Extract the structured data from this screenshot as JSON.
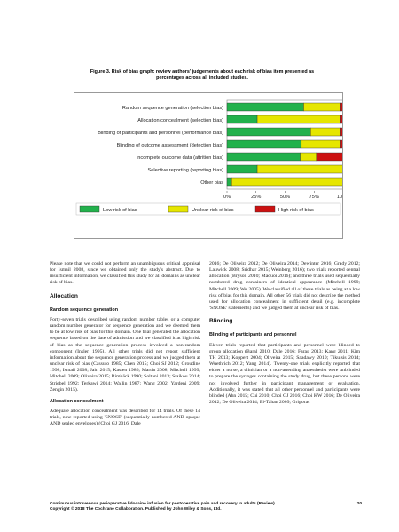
{
  "figure": {
    "caption_line1": "Figure 3.   Risk of bias graph: review authors' judgements about each risk of bias item presented as",
    "caption_line2": "percentages across all included studies."
  },
  "chart_data": {
    "type": "bar",
    "orientation": "horizontal",
    "stacked": true,
    "categories": [
      "Random sequence generation (selection bias)",
      "Allocation concealment (selection bias)",
      "Blinding of participants and personnel (performance bias)",
      "Blinding of outcome assessment (detection bias)",
      "Incomplete outcome data (attrition bias)",
      "Selective reporting (reporting bias)",
      "Other bias"
    ],
    "series": [
      {
        "name": "Low risk of bias",
        "color": "#22b14c",
        "values": [
          66,
          26,
          72,
          64,
          63,
          26,
          4
        ]
      },
      {
        "name": "Unclear risk of bias",
        "color": "#e6e600",
        "values": [
          32,
          72,
          26,
          34,
          14,
          74,
          96
        ]
      },
      {
        "name": "High risk of bias",
        "color": "#cc1111",
        "values": [
          2,
          2,
          2,
          2,
          23,
          0,
          0
        ]
      }
    ],
    "xticks": [
      "0%",
      "25%",
      "50%",
      "75%",
      "100%"
    ],
    "xlim": [
      0,
      100
    ],
    "legend": "bottom"
  },
  "left_col": {
    "p1": "Please note that we could not perform an unambiguous critical appraisal for Ismail 2008, since we obtained only the study's abstract. Due to insufficient information, we classified this study for all domains as unclear risk of bias.",
    "h_allocation": "Allocation",
    "h_random": "Random sequence generation",
    "p2": "Forty-seven trials described using random number tables or a computer random number generator for sequence generation and we deemed them to be at low risk of bias for this domain. One trial generated the allocation sequence based on the date of admission and we classified it at high risk of bias as the sequence generation process involved a non-random component (Insler 1995). All other trials did not report sufficient information about the sequence generation process and we judged them at unclear risk of bias (Cassuto 1985; Chen 2015; Choi SJ 2012; Groudine 1998; Ismail 2008; Jain 2015; Kasten 1986; Martin 2008; Mitchell 1999; Mitchell 2009; Oliveira 2015; Rimbäck 1990; Soltani 2013; Staikou 2014; Striebel 1992; Terkawi 2014; Wallin 1987; Wang 2002; Yardeni 2009; Zengin 2015).",
    "h_concealment": "Allocation concealment",
    "p3": "Adequate allocation concealment was described for 14 trials. Of these 14 trials, nine reported using 'SNOSE' (sequentially numbered AND opaque AND sealed envelopes) (Choi GJ 2016; Dale"
  },
  "right_col": {
    "p1": "2016; De Oliveira 2012; De Oliveira 2014; Dewinter 2016; Grady 2012; Lauwick 2008; Sridhar 2015; Weinberg 2016); two trials reported central allocation (Bryson 2010; Maquoi 2016); and three trials used sequentially numbered drug containers of identical appearance (Mitchell 1999; Mitchell 2009; Wu 2005). We classified all of these trials as being at a low risk of bias for this domain. All other 56 trials did not describe the method used for allocation concealment in sufficient detail (e.g. incomplete 'SNOSE' statements) and we judged them at unclear risk of bias.",
    "h_blinding": "Blinding",
    "h_participants": "Blinding of participants and personnel",
    "p2": "Eleven trials reported that participants and personnel were blinded to group allocation (Baral 2010; Dale 2016; Farag 2013; Kang 2011; Kim TH 2013; Koppert 2004; Oliveira 2015; Saadawy 2010; Tikuisis 2014; Wuethrich 2012; Yang 2014). Twenty-one trials explicitly reported that either a nurse, a clinician or a non-attending anaesthetist were unblinded to prepare the syringes containing the study drug, but these persons were not involved further in participant management or evaluation. Additionally, it was stated that all other personnel and participants were blinded (Ahn 2015; Cui 2010; Choi GJ 2016; Choi KW 2016; De Oliveira 2012; De Oliveira 2014; El-Tahan 2009; Grigoras"
  },
  "footer": {
    "line1": "Continuous intravenous perioperative lidocaine infusion for postoperative pain and recovery in adults (Review)",
    "line2": "Copyright © 2018 The Cochrane Collaboration. Published by John Wiley & Sons, Ltd.",
    "page": "20"
  }
}
